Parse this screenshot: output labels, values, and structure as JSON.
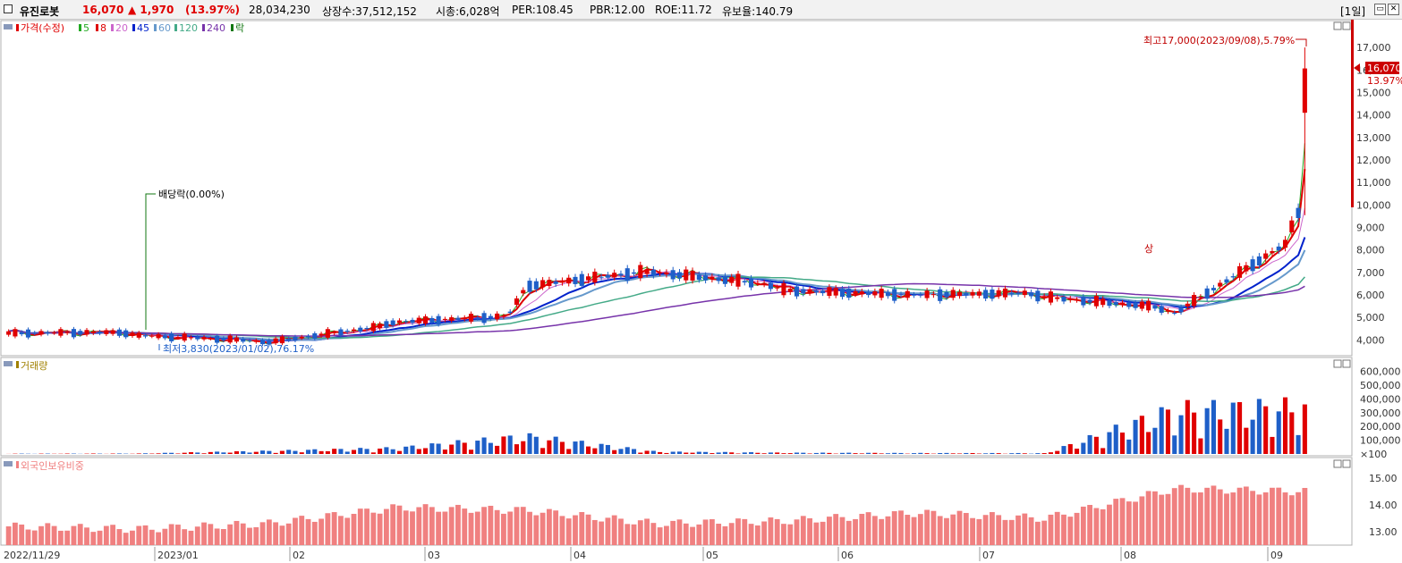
{
  "header": {
    "stock_name": "유진로봇",
    "price": "16,070",
    "change": "▲ 1,970",
    "change_pct": "(13.97%)",
    "volume": "28,034,230",
    "shares": "상장수:37,512,152",
    "market_cap": "시총:6,028억",
    "per": "PER:108.45",
    "pbr": "PBR:12.00",
    "roe": "ROE:11.72",
    "holding": "유보율:140.79",
    "period": "[1일]"
  },
  "colors": {
    "up": "#e00000",
    "down": "#1e5fc8",
    "ma5": "#22aa22",
    "ma8": "#dd0000",
    "ma20": "#cc66cc",
    "ma45": "#0022cc",
    "ma60": "#6699cc",
    "ma120": "#44aa88",
    "ma240": "#7733aa",
    "foreign": "#f08080"
  },
  "legend": {
    "price": "가격(수정)",
    "ma5": "5",
    "ma8": "8",
    "ma20": "20",
    "ma45": "45",
    "ma60": "60",
    "ma120": "120",
    "ma240": "240",
    "ex": "락",
    "volume": "거래량",
    "foreign": "외국인보유비중"
  },
  "annotations": {
    "high": "최고17,000(2023/09/08),5.79%",
    "low": "최저3,830(2023/01/02),76.17%",
    "dividend": "배당락(0.00%)",
    "limit_up": "상",
    "price_label": "16,070",
    "price_pct": "13.97%"
  },
  "axes": {
    "price_ticks": [
      "17,000",
      "16,000",
      "15,000",
      "14,000",
      "13,000",
      "12,000",
      "11,000",
      "10,000",
      "9,000",
      "8,000",
      "7,000",
      "6,000",
      "5,000",
      "4,000"
    ],
    "volume_ticks": [
      "600,000",
      "500,000",
      "400,000",
      "300,000",
      "200,000",
      "100,000",
      "×100"
    ],
    "foreign_ticks": [
      "15.00",
      "14.00",
      "13.00"
    ],
    "x_labels": [
      "2022/11/29",
      "2023/01",
      "02",
      "03",
      "04",
      "05",
      "06",
      "07",
      "08",
      "09"
    ]
  },
  "chart_data": {
    "type": "candlestick",
    "price_range": [
      3500,
      18000
    ],
    "volume_unit": "x100",
    "volume_range": [
      0,
      650000
    ],
    "foreign_range": [
      12.5,
      15.5
    ],
    "months": [
      {
        "label": "2022/11/29",
        "price": [
          4300,
          4350
        ],
        "volume": 2000,
        "foreign": 13.2
      },
      {
        "label": "2022/12",
        "price": [
          4200,
          3950
        ],
        "volume": 3000,
        "foreign": 13.1
      },
      {
        "label": "2023/01",
        "price": [
          3900,
          4700
        ],
        "volume": 20000,
        "foreign": 13.3
      },
      {
        "label": "02",
        "price": [
          4800,
          5100
        ],
        "volume": 40000,
        "foreign": 13.9
      },
      {
        "label": "03",
        "price": [
          6400,
          7100
        ],
        "volume": 120000,
        "foreign": 13.8
      },
      {
        "label": "04",
        "price": [
          7000,
          6400
        ],
        "volume": 15000,
        "foreign": 13.3
      },
      {
        "label": "05",
        "price": [
          6200,
          6000
        ],
        "volume": 8000,
        "foreign": 13.4
      },
      {
        "label": "06",
        "price": [
          6000,
          6100
        ],
        "volume": 6000,
        "foreign": 13.7
      },
      {
        "label": "07",
        "price": [
          5900,
          5400
        ],
        "volume": 5000,
        "foreign": 13.5
      },
      {
        "label": "08",
        "price": [
          5200,
          8800
        ],
        "volume": 300000,
        "foreign": 14.6
      },
      {
        "label": "09",
        "price": [
          10200,
          16070
        ],
        "volume": 320000,
        "foreign": 14.5
      }
    ],
    "series": [
      {
        "name": "가격(수정)",
        "last": 16070,
        "high": 17000,
        "low": 3830
      }
    ]
  }
}
